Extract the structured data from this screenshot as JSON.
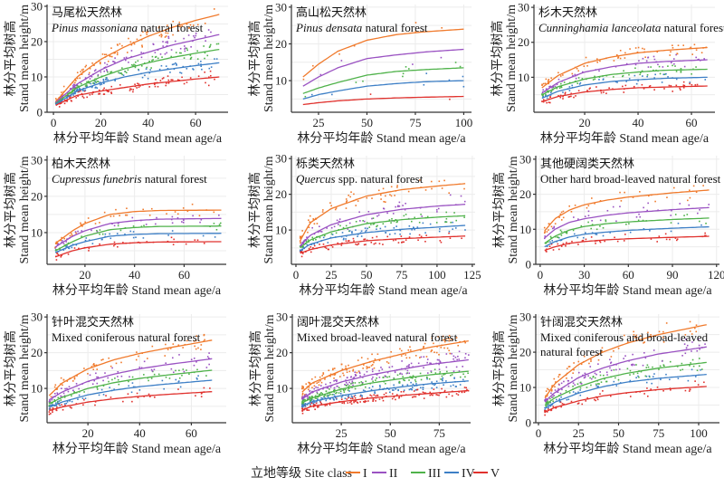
{
  "chart_data": {
    "type": "scatter",
    "xlabel": "林分平均年龄 Stand mean age/a",
    "ylabel_cn": "林分平均树高",
    "ylabel_en": "Stand mean height/m",
    "grid": true,
    "legend": {
      "title": "立地等级 Site class",
      "placement": "bottom-center",
      "entries": [
        "I",
        "II",
        "III",
        "IV",
        "V"
      ],
      "colors": [
        "#f07a2c",
        "#9a52c2",
        "#4fb24a",
        "#3d7fc6",
        "#e0312d"
      ]
    },
    "panels": [
      {
        "title_cn": "马尾松天然林",
        "species": "Pinus massoniana",
        "title_en": " natural forest",
        "xlim": [
          -2.7,
          73.7
        ],
        "ylim": [
          0,
          30.5
        ],
        "xticks": [
          0,
          20,
          40,
          60
        ],
        "yticks": [
          0,
          10,
          20,
          30
        ],
        "ages": [
          1,
          10,
          20,
          30,
          40,
          50,
          60,
          70
        ],
        "curves": [
          [
            3,
            10,
            15,
            18.5,
            21.5,
            24,
            26,
            27.7
          ],
          [
            2.8,
            8,
            12,
            15,
            17,
            19,
            20.5,
            22
          ],
          [
            2.5,
            7,
            10,
            12.3,
            14,
            15.5,
            16.7,
            17.8
          ],
          [
            2.3,
            6,
            8.3,
            10,
            11.3,
            12.3,
            13.2,
            14
          ],
          [
            2,
            4.8,
            6,
            7,
            8,
            8.7,
            9.4,
            10
          ]
        ]
      },
      {
        "title_cn": "高山松天然林",
        "species": "Pinus densata",
        "title_en": " natural forest",
        "xlim": [
          11,
          104
        ],
        "ylim": [
          1.4,
          30.7
        ],
        "xticks": [
          25,
          50,
          75,
          100
        ],
        "yticks": [
          10,
          20,
          30
        ],
        "ages": [
          17,
          25,
          35,
          50,
          65,
          80,
          100
        ],
        "curves": [
          [
            11,
            14.5,
            18,
            21,
            22.5,
            23.3,
            24
          ],
          [
            8.5,
            11,
            13.5,
            16,
            17,
            17.8,
            18.5
          ],
          [
            6.5,
            8,
            9.5,
            11.5,
            12.5,
            13,
            13.5
          ],
          [
            5,
            6.2,
            7.2,
            8.5,
            9.2,
            9.7,
            10
          ],
          [
            3.5,
            4,
            4.5,
            5,
            5.3,
            5.5,
            5.7
          ]
        ]
      },
      {
        "title_cn": "杉木天然林",
        "species": "Cunninghamia lanceolata",
        "title_en": " natural forest",
        "xlim": [
          1,
          68.8
        ],
        "ylim": [
          0,
          30.8
        ],
        "xticks": [
          20,
          40,
          60
        ],
        "yticks": [
          10,
          20,
          30
        ],
        "ages": [
          4,
          10,
          20,
          30,
          40,
          50,
          66
        ],
        "curves": [
          [
            7,
            10.5,
            14,
            15.8,
            17,
            17.7,
            18.5
          ],
          [
            5.5,
            8.5,
            11.5,
            13,
            14,
            14.5,
            15
          ],
          [
            5,
            7.3,
            9.5,
            10.8,
            11.5,
            12,
            12.3
          ],
          [
            4,
            6,
            7.8,
            8.8,
            9.3,
            9.7,
            10
          ],
          [
            3,
            4.5,
            5.8,
            6.5,
            7,
            7.2,
            7.5
          ]
        ]
      },
      {
        "title_cn": "柏木天然林",
        "species": "Cupressus funebris",
        "title_en": " natural forest",
        "xlim": [
          4.7,
          77
        ],
        "ylim": [
          1.25,
          31.2
        ],
        "xticks": [
          20,
          40,
          60
        ],
        "yticks": [
          10,
          20,
          30
        ],
        "ages": [
          8,
          15,
          20,
          30,
          40,
          50,
          75
        ],
        "curves": [
          [
            7,
            10.5,
            12.5,
            15,
            15.8,
            16.1,
            16.2
          ],
          [
            6,
            9,
            10.5,
            12.5,
            13.3,
            13.7,
            13.9
          ],
          [
            5,
            7.5,
            9,
            10.8,
            11.4,
            11.7,
            11.8
          ],
          [
            4.5,
            6.5,
            7.5,
            9,
            9.5,
            9.7,
            9.8
          ],
          [
            3.3,
            5,
            5.8,
            6.8,
            7.2,
            7.4,
            7.5
          ]
        ]
      },
      {
        "title_cn": "栎类天然林",
        "species": "Quercus",
        "title_en": " spp. natural forest",
        "xlim": [
          -3.2,
          127
        ],
        "ylim": [
          0.4,
          30.8
        ],
        "xticks": [
          0,
          25,
          50,
          75,
          100,
          125
        ],
        "yticks": [
          10,
          20,
          30
        ],
        "ages": [
          3,
          10,
          25,
          50,
          75,
          100,
          120
        ],
        "curves": [
          [
            7,
            12,
            16,
            19.5,
            21.3,
            22.3,
            23
          ],
          [
            5.5,
            8.5,
            11.5,
            14.3,
            15.8,
            16.7,
            17.2
          ],
          [
            5,
            7.2,
            9.5,
            11.8,
            12.9,
            13.6,
            14
          ],
          [
            4.2,
            6,
            7.8,
            9.3,
            10.2,
            10.8,
            11.3
          ],
          [
            3.5,
            4.5,
            5.8,
            7,
            7.6,
            8,
            8.3
          ]
        ]
      },
      {
        "title_cn": "其他硬阔类天然林",
        "species": "",
        "title_en": "Other hard broad-leaved natural forest",
        "xlim": [
          -3,
          122
        ],
        "ylim": [
          0,
          31
        ],
        "xticks": [
          0,
          30,
          60,
          90,
          120
        ],
        "yticks": [
          0,
          10,
          20,
          30
        ],
        "ages": [
          3,
          10,
          20,
          30,
          45,
          60,
          90,
          115
        ],
        "curves": [
          [
            9.5,
            13,
            15.5,
            17,
            18.3,
            19.2,
            20.4,
            21.2
          ],
          [
            7.5,
            10,
            12,
            13,
            14,
            14.7,
            15.6,
            16.2
          ],
          [
            6,
            8,
            9.8,
            10.8,
            11.6,
            12.1,
            12.8,
            13.2
          ],
          [
            5,
            6.5,
            7.8,
            8.6,
            9.2,
            9.7,
            10.3,
            10.7
          ],
          [
            4,
            5,
            6,
            6.5,
            7,
            7.3,
            7.7,
            8
          ]
        ]
      },
      {
        "title_cn": "针叶混交天然林",
        "species": "",
        "title_en": "Mixed coniferous natural forest",
        "xlim": [
          4.2,
          73.5
        ],
        "ylim": [
          0.4,
          30.8
        ],
        "xticks": [
          20,
          40,
          60
        ],
        "yticks": [
          10,
          20,
          30
        ],
        "ages": [
          5,
          10,
          20,
          30,
          40,
          50,
          68
        ],
        "curves": [
          [
            8,
            11.5,
            15.5,
            18,
            19.8,
            21.2,
            23.5
          ],
          [
            6.8,
            9,
            12,
            14,
            15.5,
            16.6,
            18.3
          ],
          [
            5.7,
            7.5,
            10,
            11.6,
            12.8,
            13.7,
            15.1
          ],
          [
            4.7,
            6.2,
            8.2,
            9.5,
            10.5,
            11.2,
            12.3
          ],
          [
            3.8,
            4.8,
            6.2,
            7.1,
            7.8,
            8.3,
            9.1
          ]
        ]
      },
      {
        "title_cn": "阔叶混交天然林",
        "species": "",
        "title_en": "Mixed broad-leaved natural forest",
        "xlim": [
          0,
          91
        ],
        "ylim": [
          0.4,
          30.8
        ],
        "xticks": [
          25,
          50,
          75
        ],
        "yticks": [
          10,
          20,
          30
        ],
        "ages": [
          5,
          10,
          25,
          40,
          55,
          70,
          90
        ],
        "curves": [
          [
            9,
            11.5,
            15,
            17.5,
            19.5,
            21.5,
            23.3
          ],
          [
            7,
            9,
            11.8,
            13.8,
            15.3,
            16.7,
            18
          ],
          [
            6,
            7.3,
            9.8,
            11.5,
            12.7,
            13.8,
            14.8
          ],
          [
            5,
            6.3,
            8,
            9.3,
            10.4,
            11.3,
            12.1
          ],
          [
            4,
            5,
            6.3,
            7.3,
            8,
            8.6,
            9.4
          ]
        ]
      },
      {
        "title_cn": "针阔混交天然林",
        "species": "",
        "title_en": "Mixed coniferous and broad-leaved\nnatural forest",
        "xlim": [
          -1.7,
          113
        ],
        "ylim": [
          0,
          30.8
        ],
        "xticks": [
          0,
          25,
          50,
          75,
          100
        ],
        "yticks": [
          0,
          10,
          20,
          30
        ],
        "ages": [
          4,
          10,
          25,
          40,
          55,
          75,
          105
        ],
        "curves": [
          [
            7,
            11,
            16.5,
            20,
            22.5,
            25,
            27.8
          ],
          [
            6,
            8.5,
            12.8,
            15.5,
            17.5,
            19.5,
            21.5
          ],
          [
            5,
            7,
            10.2,
            12.5,
            14,
            15.5,
            17.1
          ],
          [
            4,
            5.8,
            8.4,
            10.2,
            11.5,
            12.6,
            13.7
          ],
          [
            3,
            4.3,
            6.2,
            7.6,
            8.5,
            9.4,
            10.3
          ]
        ]
      }
    ]
  }
}
